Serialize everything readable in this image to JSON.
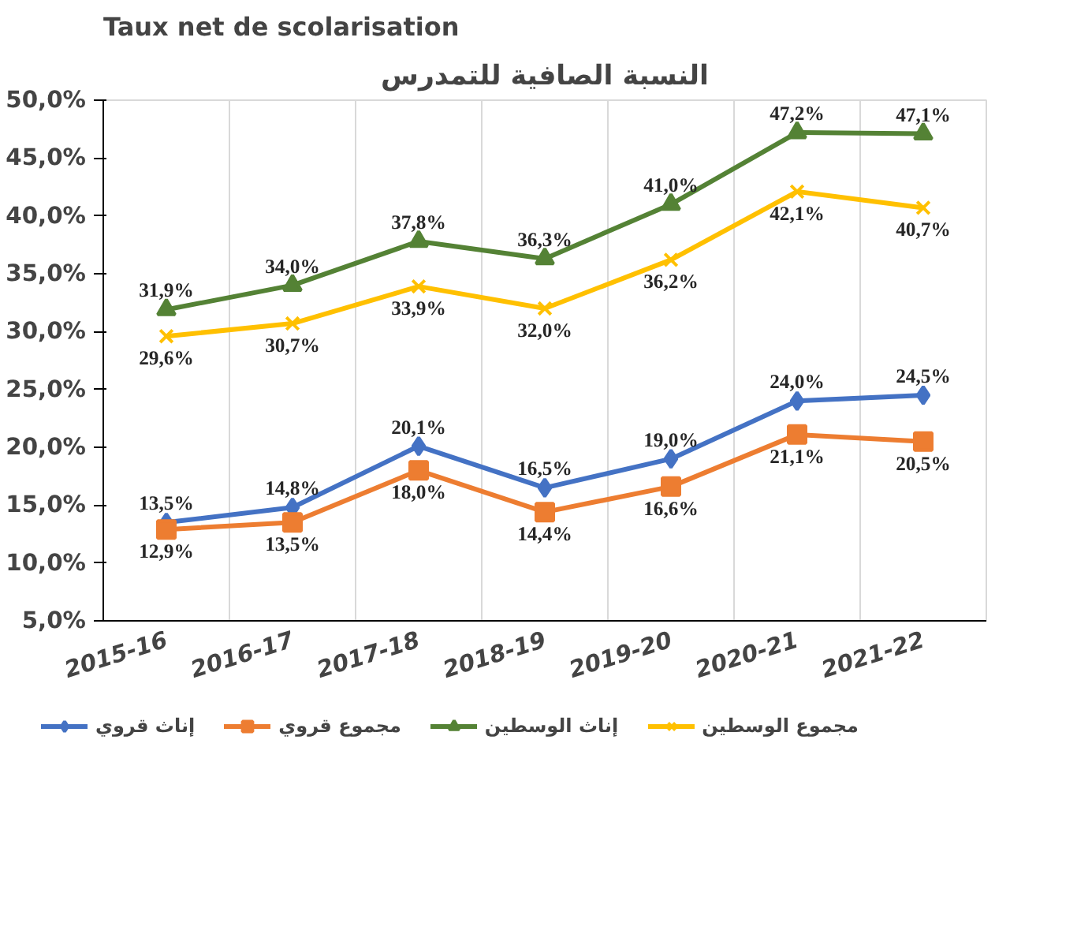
{
  "chart_data": {
    "type": "line",
    "title": "Taux net de scolarisation",
    "subtitle": "النسبة الصافية للتمدرس",
    "categories": [
      "2015-16",
      "2016-17",
      "2017-18",
      "2018-19",
      "2019-20",
      "2020-21",
      "2021-22"
    ],
    "ylim": [
      5,
      50
    ],
    "yticks": [
      {
        "value": 5,
        "label": "5,0%"
      },
      {
        "value": 10,
        "label": "10,0%"
      },
      {
        "value": 15,
        "label": "15,0%"
      },
      {
        "value": 20,
        "label": "20,0%"
      },
      {
        "value": 25,
        "label": "25,0%"
      },
      {
        "value": 30,
        "label": "30,0%"
      },
      {
        "value": 35,
        "label": "35,0%"
      },
      {
        "value": 40,
        "label": "40,0%"
      },
      {
        "value": 45,
        "label": "45,0%"
      },
      {
        "value": 50,
        "label": "50,0%"
      }
    ],
    "grid": "x",
    "legend": "bottom",
    "line_style": "solid",
    "series": [
      {
        "name": "إناث قروي",
        "color": "#4472c4",
        "marker": "diamond",
        "values": [
          13.5,
          14.8,
          20.1,
          16.5,
          19.0,
          24.0,
          24.5
        ],
        "value_labels": [
          "13,5%",
          "14,8%",
          "20,1%",
          "16,5%",
          "19,0%",
          "24,0%",
          "24,5%"
        ]
      },
      {
        "name": "مجموع قروي",
        "color": "#ed7d31",
        "marker": "square",
        "values": [
          12.9,
          13.5,
          18.0,
          14.4,
          16.6,
          21.1,
          20.5
        ],
        "value_labels": [
          "12,9%",
          "13,5%",
          "18,0%",
          "14,4%",
          "16,6%",
          "21,1%",
          "20,5%"
        ]
      },
      {
        "name": "إناث الوسطين",
        "color": "#548235",
        "marker": "triangle",
        "values": [
          31.9,
          34.0,
          37.8,
          36.3,
          41.0,
          47.2,
          47.1
        ],
        "value_labels": [
          "31,9%",
          "34,0%",
          "37,8%",
          "36,3%",
          "41,0%",
          "47,2%",
          "47,1%"
        ]
      },
      {
        "name": "مجموع الوسطين",
        "color": "#ffc000",
        "marker": "cross",
        "values": [
          29.6,
          30.7,
          33.9,
          32.0,
          36.2,
          42.1,
          40.7
        ],
        "value_labels": [
          "29,6%",
          "30,7%",
          "33,9%",
          "32,0%",
          "36,2%",
          "42,1%",
          "40,7%"
        ]
      }
    ]
  }
}
